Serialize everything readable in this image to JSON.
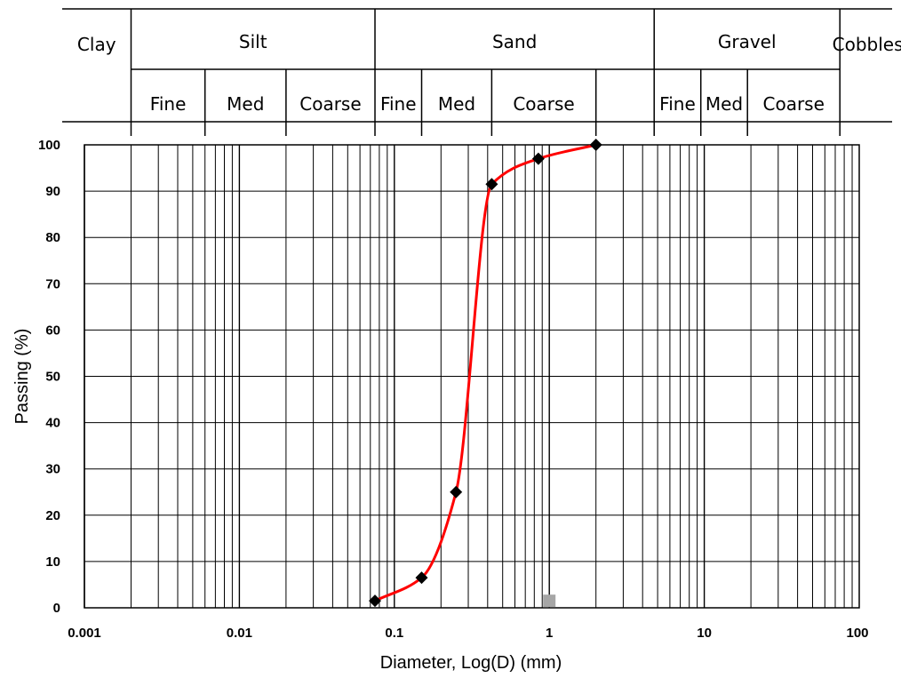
{
  "classification": {
    "primary": [
      {
        "label": "Clay",
        "from": 0.001,
        "to": 0.002
      },
      {
        "label": "Silt",
        "from": 0.002,
        "to": 0.075
      },
      {
        "label": "Sand",
        "from": 0.075,
        "to": 4.75
      },
      {
        "label": "Gravel",
        "from": 4.75,
        "to": 75
      },
      {
        "label": "Cobbles",
        "from": 75,
        "to": 100
      }
    ],
    "secondary": [
      {
        "label": "Fine",
        "from": 0.002,
        "to": 0.006
      },
      {
        "label": "Med",
        "from": 0.006,
        "to": 0.02
      },
      {
        "label": "Coarse",
        "from": 0.02,
        "to": 0.075
      },
      {
        "label": "Fine",
        "from": 0.075,
        "to": 0.15
      },
      {
        "label": "Med",
        "from": 0.15,
        "to": 0.425
      },
      {
        "label": "Coarse",
        "from": 0.425,
        "to": 2
      },
      {
        "label": "Fine",
        "from": 4.75,
        "to": 9.5
      },
      {
        "label": "Med",
        "from": 9.5,
        "to": 19
      },
      {
        "label": "Coarse",
        "from": 19,
        "to": 75
      }
    ],
    "extra_dividers": [
      2
    ]
  },
  "chart_data": {
    "type": "line",
    "x_scale": "log",
    "xlim": [
      0.001,
      100
    ],
    "ylim": [
      0,
      100
    ],
    "x_ticks": [
      0.001,
      0.01,
      0.1,
      1,
      10,
      100
    ],
    "x_tick_labels": [
      "0.001",
      "0.01",
      "0.1",
      "1",
      "10",
      "100"
    ],
    "y_ticks": [
      0,
      10,
      20,
      30,
      40,
      50,
      60,
      70,
      80,
      90,
      100
    ],
    "y_tick_labels": [
      "0",
      "10",
      "20",
      "30",
      "40",
      "50",
      "60",
      "70",
      "80",
      "90",
      "100"
    ],
    "xlabel": "Diameter, Log(D) (mm)",
    "ylabel": "Passing (%)",
    "grid": true,
    "series": [
      {
        "color": "#ff0000",
        "marker": "diamond",
        "marker_color": "#000000",
        "x": [
          0.075,
          0.15,
          0.25,
          0.425,
          0.85,
          2.0
        ],
        "y": [
          1.5,
          6.5,
          25,
          91.5,
          97,
          100
        ]
      },
      {
        "marker": "square",
        "marker_color": "#a6a6a6",
        "x": [
          1
        ],
        "y": [
          1.5
        ]
      }
    ]
  }
}
